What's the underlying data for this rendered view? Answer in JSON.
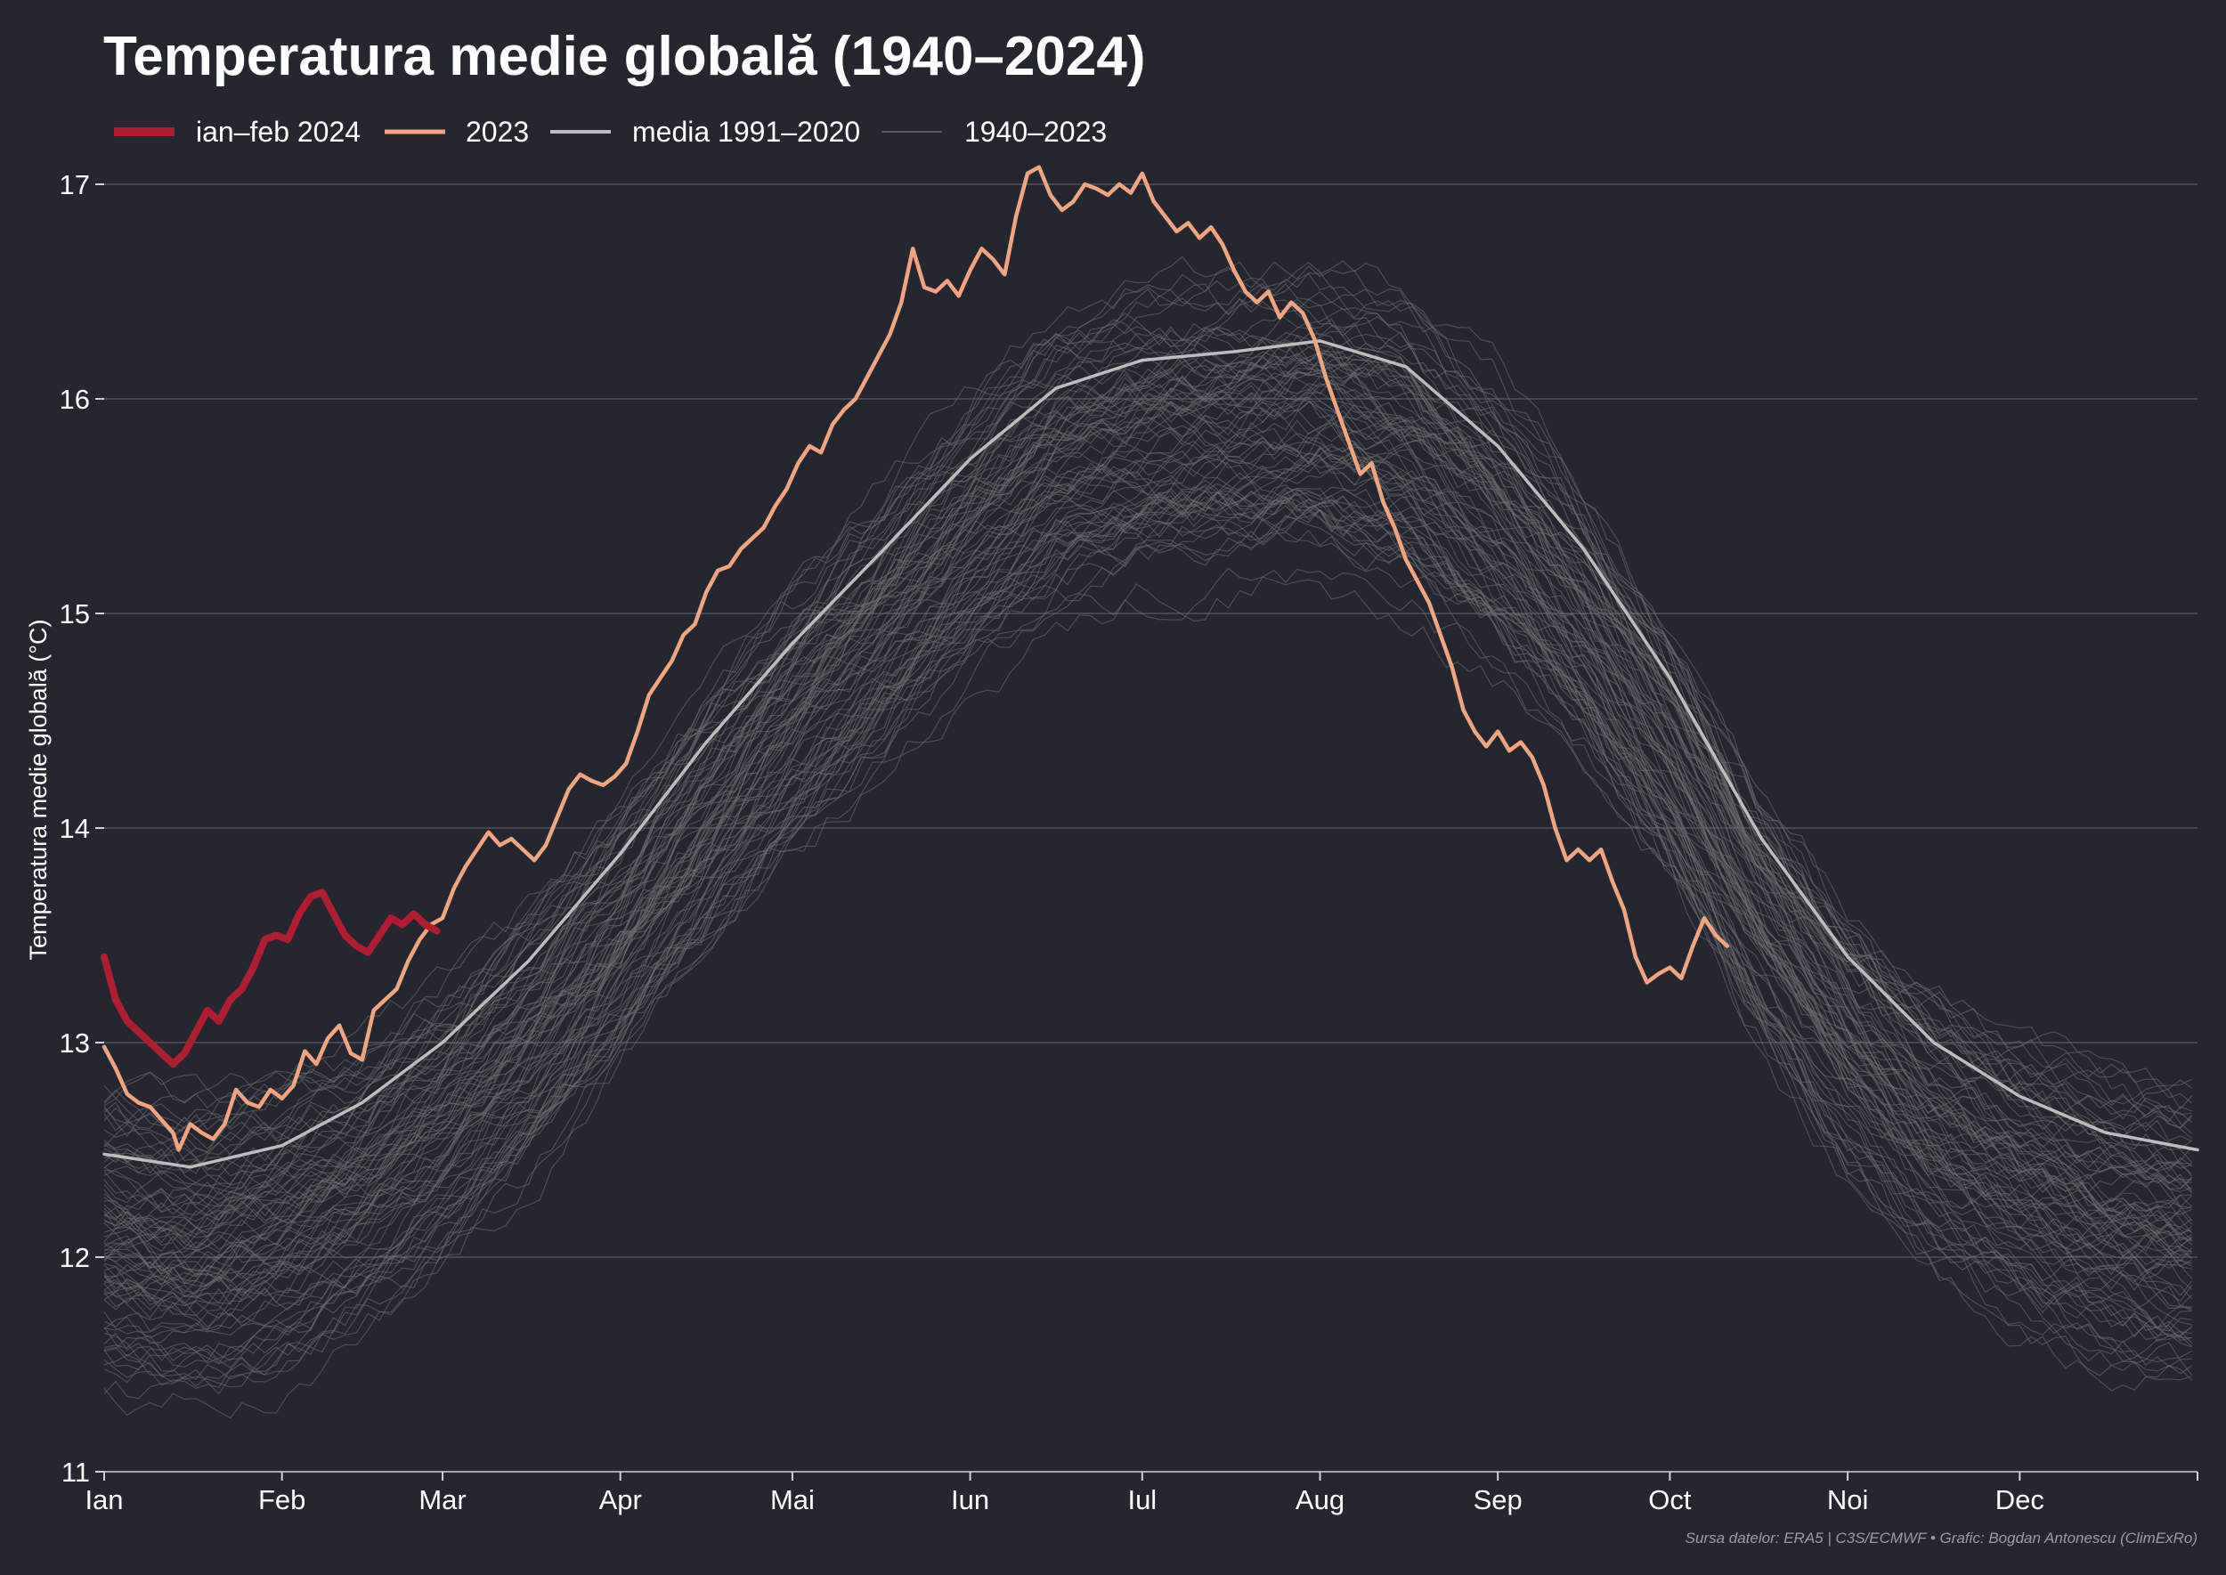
{
  "chart_data": {
    "type": "line",
    "title": "Temperatura medie globală (1940–2024)",
    "xlabel": "",
    "ylabel": "Temperatura medie globală (°C)",
    "source": "Sursa datelor: ERA5 | C3S/ECMWF • Grafic: Bogdan Antonescu (ClimExRo)",
    "xlim": [
      1,
      366
    ],
    "ylim": [
      11,
      17
    ],
    "y_ticks": [
      "11",
      "12",
      "13",
      "14",
      "15",
      "16",
      "17"
    ],
    "x_ticks": [
      {
        "label": "Ian",
        "day": 1
      },
      {
        "label": "Feb",
        "day": 32
      },
      {
        "label": "Mar",
        "day": 60
      },
      {
        "label": "Apr",
        "day": 91
      },
      {
        "label": "Mai",
        "day": 121
      },
      {
        "label": "Iun",
        "day": 152
      },
      {
        "label": "Iul",
        "day": 182
      },
      {
        "label": "Aug",
        "day": 213
      },
      {
        "label": "Sep",
        "day": 244
      },
      {
        "label": "Oct",
        "day": 274
      },
      {
        "label": "Noi",
        "day": 305
      },
      {
        "label": "Dec",
        "day": 335
      }
    ],
    "grid": true,
    "legend_position": "top-left",
    "colors": {
      "background": "#24272f",
      "current": "#b01c30",
      "previous": "#f2a47e",
      "mean": "#bdbdbd",
      "history": "#6f6f72",
      "grid": "#5a5d64"
    },
    "legend": [
      {
        "label": "ian–feb 2024",
        "color": "#b01c30",
        "width": 10
      },
      {
        "label": "2023",
        "color": "#f2a47e",
        "width": 5
      },
      {
        "label": "media 1991–2020",
        "color": "#bdbdbd",
        "width": 4
      },
      {
        "label": "1940–2023",
        "color": "#6f6f72",
        "width": 1.5
      }
    ],
    "series": [
      {
        "name": "ian–feb 2024",
        "points": [
          [
            1,
            13.4
          ],
          [
            3,
            13.2
          ],
          [
            5,
            13.1
          ],
          [
            7,
            13.05
          ],
          [
            9,
            13.0
          ],
          [
            11,
            12.95
          ],
          [
            13,
            12.9
          ],
          [
            15,
            12.95
          ],
          [
            17,
            13.05
          ],
          [
            19,
            13.15
          ],
          [
            21,
            13.1
          ],
          [
            23,
            13.2
          ],
          [
            25,
            13.25
          ],
          [
            27,
            13.35
          ],
          [
            29,
            13.48
          ],
          [
            31,
            13.5
          ],
          [
            33,
            13.48
          ],
          [
            35,
            13.6
          ],
          [
            37,
            13.68
          ],
          [
            39,
            13.7
          ],
          [
            41,
            13.6
          ],
          [
            43,
            13.5
          ],
          [
            45,
            13.45
          ],
          [
            47,
            13.42
          ],
          [
            49,
            13.5
          ],
          [
            51,
            13.58
          ],
          [
            53,
            13.55
          ],
          [
            55,
            13.6
          ],
          [
            57,
            13.55
          ],
          [
            59,
            13.52
          ]
        ]
      },
      {
        "name": "2023",
        "points": [
          [
            1,
            12.98
          ],
          [
            3,
            12.88
          ],
          [
            5,
            12.76
          ],
          [
            7,
            12.72
          ],
          [
            9,
            12.7
          ],
          [
            11,
            12.64
          ],
          [
            13,
            12.58
          ],
          [
            14,
            12.5
          ],
          [
            16,
            12.62
          ],
          [
            18,
            12.58
          ],
          [
            20,
            12.55
          ],
          [
            22,
            12.62
          ],
          [
            24,
            12.78
          ],
          [
            26,
            12.72
          ],
          [
            28,
            12.7
          ],
          [
            30,
            12.78
          ],
          [
            32,
            12.74
          ],
          [
            34,
            12.8
          ],
          [
            36,
            12.96
          ],
          [
            38,
            12.9
          ],
          [
            40,
            13.02
          ],
          [
            42,
            13.08
          ],
          [
            44,
            12.95
          ],
          [
            46,
            12.92
          ],
          [
            48,
            13.15
          ],
          [
            50,
            13.2
          ],
          [
            52,
            13.25
          ],
          [
            54,
            13.38
          ],
          [
            56,
            13.48
          ],
          [
            58,
            13.55
          ],
          [
            60,
            13.58
          ],
          [
            62,
            13.72
          ],
          [
            64,
            13.82
          ],
          [
            66,
            13.9
          ],
          [
            68,
            13.98
          ],
          [
            70,
            13.92
          ],
          [
            72,
            13.95
          ],
          [
            74,
            13.9
          ],
          [
            76,
            13.85
          ],
          [
            78,
            13.92
          ],
          [
            80,
            14.05
          ],
          [
            82,
            14.18
          ],
          [
            84,
            14.25
          ],
          [
            86,
            14.22
          ],
          [
            88,
            14.2
          ],
          [
            90,
            14.24
          ],
          [
            92,
            14.3
          ],
          [
            94,
            14.45
          ],
          [
            96,
            14.62
          ],
          [
            98,
            14.7
          ],
          [
            100,
            14.78
          ],
          [
            102,
            14.9
          ],
          [
            104,
            14.95
          ],
          [
            106,
            15.1
          ],
          [
            108,
            15.2
          ],
          [
            110,
            15.22
          ],
          [
            112,
            15.3
          ],
          [
            114,
            15.35
          ],
          [
            116,
            15.4
          ],
          [
            118,
            15.5
          ],
          [
            120,
            15.58
          ],
          [
            122,
            15.7
          ],
          [
            124,
            15.78
          ],
          [
            126,
            15.75
          ],
          [
            128,
            15.88
          ],
          [
            130,
            15.95
          ],
          [
            132,
            16.0
          ],
          [
            134,
            16.1
          ],
          [
            136,
            16.2
          ],
          [
            138,
            16.3
          ],
          [
            140,
            16.45
          ],
          [
            142,
            16.7
          ],
          [
            144,
            16.52
          ],
          [
            146,
            16.5
          ],
          [
            148,
            16.55
          ],
          [
            150,
            16.48
          ],
          [
            152,
            16.6
          ],
          [
            154,
            16.7
          ],
          [
            156,
            16.65
          ],
          [
            158,
            16.58
          ],
          [
            160,
            16.85
          ],
          [
            162,
            17.05
          ],
          [
            164,
            17.08
          ],
          [
            166,
            16.95
          ],
          [
            168,
            16.88
          ],
          [
            170,
            16.92
          ],
          [
            172,
            17.0
          ],
          [
            174,
            16.98
          ],
          [
            176,
            16.95
          ],
          [
            178,
            17.0
          ],
          [
            180,
            16.96
          ],
          [
            182,
            17.05
          ],
          [
            184,
            16.92
          ],
          [
            186,
            16.85
          ],
          [
            188,
            16.78
          ],
          [
            190,
            16.82
          ],
          [
            192,
            16.75
          ],
          [
            194,
            16.8
          ],
          [
            196,
            16.72
          ],
          [
            198,
            16.6
          ],
          [
            200,
            16.5
          ],
          [
            202,
            16.45
          ],
          [
            204,
            16.5
          ],
          [
            206,
            16.38
          ],
          [
            208,
            16.45
          ],
          [
            210,
            16.4
          ],
          [
            212,
            16.28
          ],
          [
            214,
            16.1
          ],
          [
            216,
            15.95
          ],
          [
            218,
            15.8
          ],
          [
            220,
            15.65
          ],
          [
            222,
            15.7
          ],
          [
            224,
            15.52
          ],
          [
            226,
            15.4
          ],
          [
            228,
            15.25
          ],
          [
            230,
            15.15
          ],
          [
            232,
            15.05
          ],
          [
            234,
            14.9
          ],
          [
            236,
            14.75
          ],
          [
            238,
            14.55
          ],
          [
            240,
            14.45
          ],
          [
            242,
            14.38
          ],
          [
            244,
            14.45
          ],
          [
            246,
            14.36
          ],
          [
            248,
            14.4
          ],
          [
            250,
            14.33
          ],
          [
            252,
            14.2
          ],
          [
            254,
            14.0
          ],
          [
            256,
            13.85
          ],
          [
            258,
            13.9
          ],
          [
            260,
            13.85
          ],
          [
            262,
            13.9
          ],
          [
            264,
            13.75
          ],
          [
            266,
            13.62
          ],
          [
            268,
            13.4
          ],
          [
            270,
            13.28
          ],
          [
            272,
            13.32
          ],
          [
            274,
            13.35
          ],
          [
            276,
            13.3
          ],
          [
            278,
            13.45
          ],
          [
            280,
            13.58
          ],
          [
            282,
            13.5
          ],
          [
            284,
            13.45
          ]
        ]
      },
      {
        "name": "media 1991–2020",
        "points": [
          [
            1,
            12.48
          ],
          [
            16,
            12.42
          ],
          [
            32,
            12.52
          ],
          [
            46,
            12.72
          ],
          [
            60,
            13.0
          ],
          [
            75,
            13.38
          ],
          [
            91,
            13.88
          ],
          [
            106,
            14.4
          ],
          [
            121,
            14.86
          ],
          [
            137,
            15.3
          ],
          [
            152,
            15.72
          ],
          [
            167,
            16.05
          ],
          [
            182,
            16.18
          ],
          [
            198,
            16.22
          ],
          [
            213,
            16.27
          ],
          [
            228,
            16.15
          ],
          [
            244,
            15.78
          ],
          [
            259,
            15.3
          ],
          [
            274,
            14.7
          ],
          [
            290,
            13.95
          ],
          [
            305,
            13.4
          ],
          [
            320,
            13.0
          ],
          [
            335,
            12.75
          ],
          [
            350,
            12.58
          ],
          [
            366,
            12.5
          ]
        ]
      }
    ]
  }
}
